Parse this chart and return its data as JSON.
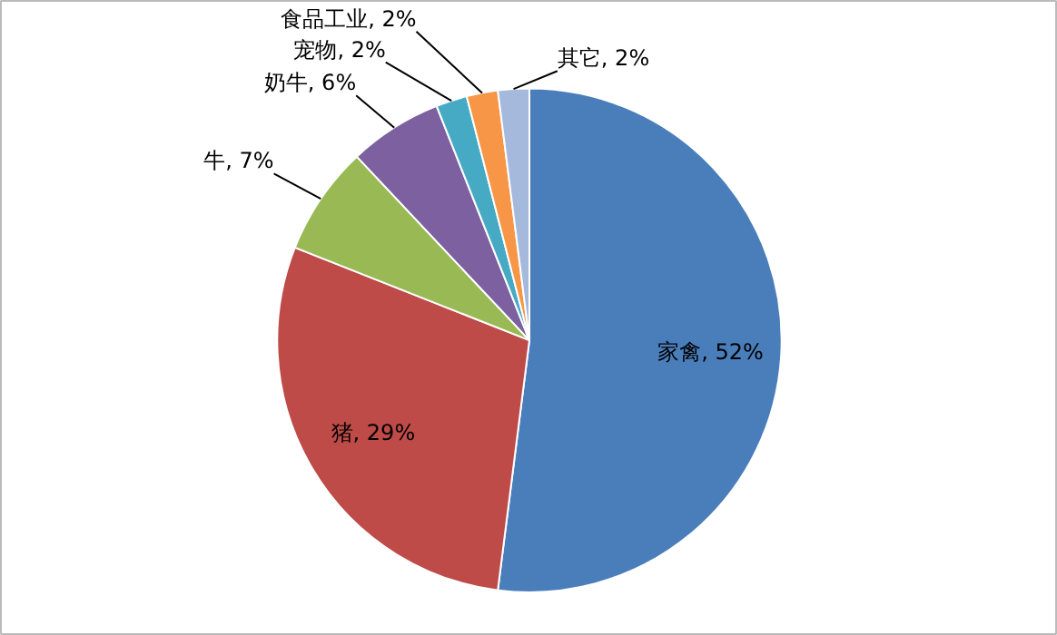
{
  "chart_data": {
    "type": "pie",
    "categories": [
      "家禽",
      "猪",
      "牛",
      "奶牛",
      "宠物",
      "食品工业",
      "其它"
    ],
    "values": [
      52,
      29,
      7,
      6,
      2,
      2,
      2
    ],
    "value_labels": [
      "52%",
      "29%",
      "7%",
      "6%",
      "2%",
      "2%",
      "2%"
    ],
    "colors": [
      "#4a7ebb",
      "#be4b48",
      "#98b954",
      "#7d60a0",
      "#46aac5",
      "#f79646",
      "#a5b9dd"
    ],
    "legend": false
  }
}
